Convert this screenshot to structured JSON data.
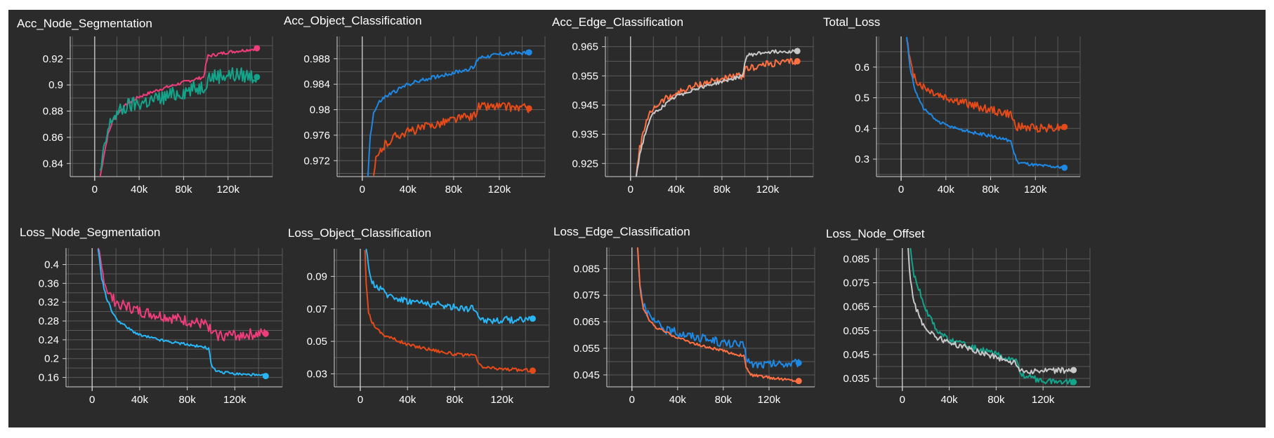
{
  "chart_data": [
    {
      "type": "line",
      "title": "Acc_Node_Segmentation",
      "xlim": [
        -22000,
        160000
      ],
      "ylim": [
        0.83,
        0.937
      ],
      "xticks": [
        0,
        40000,
        80000,
        120000
      ],
      "xtick_labels": [
        "0",
        "40k",
        "80k",
        "120k"
      ],
      "yticks": [
        0.84,
        0.86,
        0.88,
        0.9,
        0.92
      ],
      "ytick_labels": [
        "0.84",
        "0.86",
        "0.88",
        "0.9",
        "0.92"
      ],
      "grid": true,
      "series": [
        {
          "color": "#ef3d7c",
          "jitter": 0.0012,
          "x": [
            5000,
            8000,
            12000,
            16000,
            20000,
            30000,
            40000,
            60000,
            80000,
            98000,
            100000,
            102000,
            120000,
            140000,
            146000
          ],
          "values": [
            0.83,
            0.845,
            0.862,
            0.872,
            0.878,
            0.886,
            0.891,
            0.897,
            0.902,
            0.906,
            0.915,
            0.922,
            0.925,
            0.927,
            0.928
          ]
        },
        {
          "color": "#13a58b",
          "jitter": 0.006,
          "x": [
            5000,
            8000,
            12000,
            16000,
            20000,
            30000,
            40000,
            60000,
            80000,
            98000,
            100000,
            102000,
            120000,
            140000,
            146000
          ],
          "values": [
            0.832,
            0.848,
            0.865,
            0.875,
            0.878,
            0.884,
            0.886,
            0.89,
            0.895,
            0.899,
            0.902,
            0.906,
            0.908,
            0.907,
            0.906
          ]
        }
      ]
    },
    {
      "type": "line",
      "title": "Acc_Object_Classification",
      "xlim": [
        -22000,
        160000
      ],
      "ylim": [
        0.9695,
        0.9915
      ],
      "xticks": [
        0,
        40000,
        80000,
        120000
      ],
      "xtick_labels": [
        "0",
        "40k",
        "80k",
        "120k"
      ],
      "yticks": [
        0.972,
        0.976,
        0.98,
        0.984,
        0.988
      ],
      "ytick_labels": [
        "0.972",
        "0.976",
        "0.98",
        "0.984",
        "0.988"
      ],
      "grid": true,
      "series": [
        {
          "color": "#1e88e5",
          "jitter": 0.0003,
          "x": [
            5000,
            7000,
            10000,
            15000,
            20000,
            30000,
            40000,
            60000,
            80000,
            98000,
            100000,
            102000,
            120000,
            146000
          ],
          "values": [
            0.9695,
            0.976,
            0.9795,
            0.9812,
            0.982,
            0.983,
            0.984,
            0.985,
            0.9858,
            0.9866,
            0.9875,
            0.9882,
            0.9887,
            0.989
          ]
        },
        {
          "color": "#e64a19",
          "jitter": 0.0007,
          "x": [
            10000,
            12000,
            16000,
            20000,
            30000,
            40000,
            60000,
            80000,
            98000,
            100000,
            102000,
            120000,
            146000
          ],
          "values": [
            0.9695,
            0.972,
            0.9735,
            0.9745,
            0.976,
            0.9765,
            0.9775,
            0.9785,
            0.979,
            0.9798,
            0.9805,
            0.9805,
            0.9802
          ]
        }
      ]
    },
    {
      "type": "line",
      "title": "Acc_Edge_Classification",
      "xlim": [
        -22000,
        160000
      ],
      "ylim": [
        0.9205,
        0.9685
      ],
      "xticks": [
        0,
        40000,
        80000,
        120000
      ],
      "xtick_labels": [
        "0",
        "40k",
        "80k",
        "120k"
      ],
      "yticks": [
        0.925,
        0.935,
        0.945,
        0.955,
        0.965
      ],
      "ytick_labels": [
        "0.925",
        "0.935",
        "0.945",
        "0.955",
        "0.965"
      ],
      "grid": true,
      "series": [
        {
          "color": "#ff7043",
          "jitter": 0.0012,
          "x": [
            5000,
            8000,
            12000,
            16000,
            20000,
            30000,
            40000,
            60000,
            80000,
            98000,
            100000,
            102000,
            120000,
            146000
          ],
          "values": [
            0.9205,
            0.93,
            0.937,
            0.941,
            0.944,
            0.947,
            0.949,
            0.952,
            0.954,
            0.955,
            0.9565,
            0.9575,
            0.959,
            0.96
          ]
        },
        {
          "color": "#c8c8c8",
          "jitter": 0.0006,
          "x": [
            5000,
            8000,
            12000,
            16000,
            20000,
            30000,
            40000,
            60000,
            80000,
            98000,
            100000,
            102000,
            120000,
            146000
          ],
          "values": [
            0.9205,
            0.928,
            0.934,
            0.939,
            0.942,
            0.945,
            0.948,
            0.951,
            0.953,
            0.955,
            0.959,
            0.962,
            0.9632,
            0.9635
          ]
        }
      ]
    },
    {
      "type": "line",
      "title": "Total_Loss",
      "xlim": [
        -22000,
        160000
      ],
      "ylim": [
        0.243,
        0.7
      ],
      "xticks": [
        0,
        40000,
        80000,
        120000
      ],
      "xtick_labels": [
        "0",
        "40k",
        "80k",
        "120k"
      ],
      "yticks": [
        0.3,
        0.4,
        0.5,
        0.6
      ],
      "ytick_labels": [
        "0.3",
        "0.4",
        "0.5",
        "0.6"
      ],
      "grid": true,
      "series": [
        {
          "color": "#e64a19",
          "jitter": 0.014,
          "x": [
            5000,
            7000,
            10000,
            14000,
            20000,
            30000,
            40000,
            60000,
            80000,
            98000,
            100000,
            104000,
            120000,
            146000
          ],
          "values": [
            0.7,
            0.64,
            0.585,
            0.555,
            0.535,
            0.515,
            0.5,
            0.48,
            0.46,
            0.445,
            0.425,
            0.405,
            0.402,
            0.405
          ]
        },
        {
          "color": "#1e88e5",
          "jitter": 0.005,
          "x": [
            5000,
            8000,
            12000,
            16000,
            20000,
            30000,
            40000,
            60000,
            80000,
            98000,
            100000,
            104000,
            120000,
            146000
          ],
          "values": [
            0.7,
            0.6,
            0.53,
            0.495,
            0.465,
            0.43,
            0.41,
            0.39,
            0.375,
            0.36,
            0.33,
            0.29,
            0.28,
            0.272
          ]
        }
      ]
    },
    {
      "type": "line",
      "title": "Loss_Node_Segmentation",
      "xlim": [
        -22000,
        160000
      ],
      "ylim": [
        0.14,
        0.435
      ],
      "xticks": [
        0,
        40000,
        80000,
        120000
      ],
      "xtick_labels": [
        "0",
        "40k",
        "80k",
        "120k"
      ],
      "yticks": [
        0.16,
        0.2,
        0.24,
        0.28,
        0.32,
        0.36,
        0.4
      ],
      "ytick_labels": [
        "0.16",
        "0.2",
        "0.24",
        "0.28",
        "0.32",
        "0.36",
        "0.4"
      ],
      "grid": true,
      "series": [
        {
          "color": "#ef3d7c",
          "jitter": 0.012,
          "x": [
            5000,
            8000,
            12000,
            16000,
            20000,
            30000,
            40000,
            60000,
            80000,
            98000,
            100000,
            104000,
            120000,
            146000
          ],
          "values": [
            0.435,
            0.39,
            0.35,
            0.33,
            0.32,
            0.31,
            0.3,
            0.29,
            0.28,
            0.27,
            0.255,
            0.25,
            0.25,
            0.253
          ]
        },
        {
          "color": "#29b6f6",
          "jitter": 0.003,
          "x": [
            5000,
            8000,
            12000,
            16000,
            20000,
            30000,
            40000,
            60000,
            80000,
            98000,
            100000,
            104000,
            120000,
            146000
          ],
          "values": [
            0.435,
            0.37,
            0.33,
            0.305,
            0.285,
            0.265,
            0.25,
            0.238,
            0.23,
            0.222,
            0.19,
            0.172,
            0.168,
            0.163
          ]
        }
      ]
    },
    {
      "type": "line",
      "title": "Loss_Object_Classification",
      "xlim": [
        -22000,
        160000
      ],
      "ylim": [
        0.022,
        0.107
      ],
      "xticks": [
        0,
        40000,
        80000,
        120000
      ],
      "xtick_labels": [
        "0",
        "40k",
        "80k",
        "120k"
      ],
      "yticks": [
        0.03,
        0.05,
        0.07,
        0.09
      ],
      "ytick_labels": [
        "0.03",
        "0.05",
        "0.07",
        "0.09"
      ],
      "grid": true,
      "series": [
        {
          "color": "#29b6f6",
          "jitter": 0.0022,
          "x": [
            5000,
            7000,
            10000,
            15000,
            20000,
            30000,
            40000,
            60000,
            80000,
            98000,
            100000,
            104000,
            120000,
            146000
          ],
          "values": [
            0.107,
            0.094,
            0.087,
            0.083,
            0.08,
            0.077,
            0.075,
            0.073,
            0.071,
            0.07,
            0.066,
            0.063,
            0.063,
            0.064
          ]
        },
        {
          "color": "#e64a19",
          "jitter": 0.001,
          "x": [
            4000,
            5000,
            7000,
            10000,
            15000,
            20000,
            30000,
            40000,
            60000,
            80000,
            98000,
            100000,
            104000,
            120000,
            146000
          ],
          "values": [
            0.107,
            0.085,
            0.068,
            0.062,
            0.057,
            0.054,
            0.051,
            0.048,
            0.045,
            0.042,
            0.041,
            0.036,
            0.034,
            0.033,
            0.032
          ]
        }
      ]
    },
    {
      "type": "line",
      "title": "Loss_Edge_Classification",
      "xlim": [
        -22000,
        160000
      ],
      "ylim": [
        0.0405,
        0.093
      ],
      "xticks": [
        0,
        40000,
        80000,
        120000
      ],
      "xtick_labels": [
        "0",
        "40k",
        "80k",
        "120k"
      ],
      "yticks": [
        0.045,
        0.055,
        0.065,
        0.075,
        0.085
      ],
      "ytick_labels": [
        "0.045",
        "0.055",
        "0.065",
        "0.075",
        "0.085"
      ],
      "grid": true,
      "series": [
        {
          "color": "#1e88e5",
          "jitter": 0.0016,
          "x": [
            5000,
            7000,
            10000,
            15000,
            20000,
            30000,
            40000,
            60000,
            80000,
            98000,
            100000,
            104000,
            120000,
            146000
          ],
          "values": [
            0.093,
            0.08,
            0.071,
            0.067,
            0.065,
            0.062,
            0.061,
            0.059,
            0.057,
            0.056,
            0.052,
            0.049,
            0.049,
            0.0495
          ]
        },
        {
          "color": "#ff7043",
          "jitter": 0.0005,
          "x": [
            5000,
            7000,
            10000,
            15000,
            20000,
            30000,
            40000,
            60000,
            80000,
            98000,
            100000,
            104000,
            120000,
            146000
          ],
          "values": [
            0.093,
            0.078,
            0.07,
            0.066,
            0.063,
            0.061,
            0.059,
            0.056,
            0.054,
            0.052,
            0.048,
            0.045,
            0.044,
            0.0427
          ]
        }
      ]
    },
    {
      "type": "line",
      "title": "Loss_Node_Offset",
      "xlim": [
        -22000,
        160000
      ],
      "ylim": [
        0.0315,
        0.0895
      ],
      "xticks": [
        0,
        40000,
        80000,
        120000
      ],
      "xtick_labels": [
        "0",
        "40k",
        "80k",
        "120k"
      ],
      "yticks": [
        0.035,
        0.045,
        0.055,
        0.065,
        0.075,
        0.085
      ],
      "ytick_labels": [
        "0.035",
        "0.045",
        "0.055",
        "0.065",
        "0.075",
        "0.085"
      ],
      "grid": true,
      "series": [
        {
          "color": "#13a58b",
          "jitter": 0.0012,
          "x": [
            7000,
            10000,
            15000,
            20000,
            30000,
            40000,
            60000,
            80000,
            98000,
            100000,
            104000,
            120000,
            146000
          ],
          "values": [
            0.0895,
            0.078,
            0.071,
            0.064,
            0.055,
            0.051,
            0.048,
            0.045,
            0.042,
            0.038,
            0.036,
            0.034,
            0.0335
          ]
        },
        {
          "color": "#c8c8c8",
          "jitter": 0.0012,
          "x": [
            5000,
            7000,
            10000,
            15000,
            20000,
            30000,
            40000,
            60000,
            80000,
            98000,
            100000,
            104000,
            120000,
            146000
          ],
          "values": [
            0.0895,
            0.075,
            0.067,
            0.06,
            0.056,
            0.052,
            0.05,
            0.047,
            0.044,
            0.041,
            0.039,
            0.038,
            0.038,
            0.0385
          ]
        }
      ]
    }
  ]
}
